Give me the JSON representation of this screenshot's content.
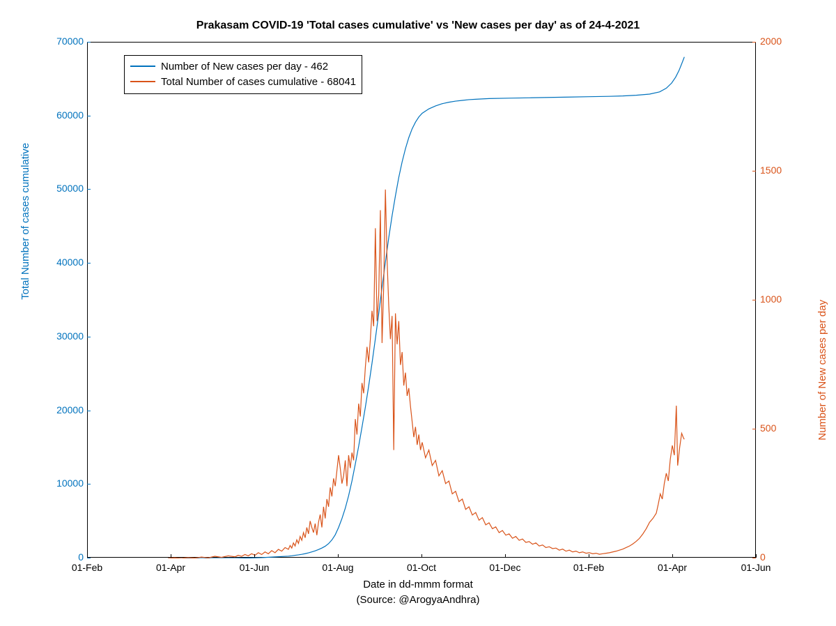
{
  "chart": {
    "type": "dual-axis-line",
    "title": "Prakasam COVID-19 'Total cases cumulative' vs 'New cases per day' as of 24-4-2021",
    "background_color": "#ffffff",
    "plot_border_color": "#000000",
    "title_fontsize": 16,
    "label_fontsize": 15,
    "tick_fontsize": 14,
    "x_label_line1": "Date in dd-mmm format",
    "x_label_line2": "(Source: @ArogyaAndhra)",
    "x_ticks": [
      "01-Feb",
      "01-Apr",
      "01-Jun",
      "01-Aug",
      "01-Oct",
      "01-Dec",
      "01-Feb",
      "01-Apr",
      "01-Jun"
    ],
    "y_left": {
      "label": "Total Number of cases cumulative",
      "color": "#0072bd",
      "min": 0,
      "max": 70000,
      "ticks": [
        0,
        10000,
        20000,
        30000,
        40000,
        50000,
        60000,
        70000
      ]
    },
    "y_right": {
      "label": "Number of New cases per day",
      "color": "#d95319",
      "min": 0,
      "max": 2000,
      "ticks": [
        0,
        500,
        1000,
        1500,
        2000
      ]
    },
    "legend": {
      "items": [
        {
          "color": "#0072bd",
          "label": "Number of New cases per day - 462"
        },
        {
          "color": "#d95319",
          "label": "Total Number of cases cumulative - 68041"
        }
      ]
    },
    "line_width": 1.2,
    "series_cumulative": {
      "color": "#0072bd",
      "data": [
        [
          0.12,
          0
        ],
        [
          0.14,
          0
        ],
        [
          0.16,
          0
        ],
        [
          0.18,
          0
        ],
        [
          0.2,
          0
        ],
        [
          0.22,
          0
        ],
        [
          0.24,
          50
        ],
        [
          0.26,
          100
        ],
        [
          0.28,
          200
        ],
        [
          0.3,
          300
        ],
        [
          0.305,
          350
        ],
        [
          0.31,
          420
        ],
        [
          0.315,
          480
        ],
        [
          0.32,
          550
        ],
        [
          0.325,
          640
        ],
        [
          0.33,
          750
        ],
        [
          0.335,
          880
        ],
        [
          0.34,
          1020
        ],
        [
          0.345,
          1200
        ],
        [
          0.35,
          1400
        ],
        [
          0.355,
          1650
        ],
        [
          0.36,
          2000
        ],
        [
          0.365,
          2500
        ],
        [
          0.37,
          3200
        ],
        [
          0.375,
          4200
        ],
        [
          0.38,
          5400
        ],
        [
          0.385,
          6800
        ],
        [
          0.39,
          8500
        ],
        [
          0.395,
          10500
        ],
        [
          0.4,
          12800
        ],
        [
          0.405,
          15200
        ],
        [
          0.41,
          17800
        ],
        [
          0.415,
          20500
        ],
        [
          0.42,
          23400
        ],
        [
          0.425,
          26500
        ],
        [
          0.43,
          29800
        ],
        [
          0.435,
          33200
        ],
        [
          0.44,
          36800
        ],
        [
          0.445,
          40200
        ],
        [
          0.45,
          43500
        ],
        [
          0.455,
          46500
        ],
        [
          0.46,
          49200
        ],
        [
          0.465,
          51700
        ],
        [
          0.47,
          53800
        ],
        [
          0.475,
          55600
        ],
        [
          0.48,
          57100
        ],
        [
          0.485,
          58300
        ],
        [
          0.49,
          59200
        ],
        [
          0.495,
          59900
        ],
        [
          0.5,
          60400
        ],
        [
          0.51,
          61000
        ],
        [
          0.52,
          61400
        ],
        [
          0.53,
          61700
        ],
        [
          0.54,
          61900
        ],
        [
          0.55,
          62050
        ],
        [
          0.56,
          62150
        ],
        [
          0.57,
          62250
        ],
        [
          0.58,
          62300
        ],
        [
          0.6,
          62400
        ],
        [
          0.63,
          62450
        ],
        [
          0.66,
          62500
        ],
        [
          0.69,
          62550
        ],
        [
          0.72,
          62600
        ],
        [
          0.75,
          62650
        ],
        [
          0.78,
          62700
        ],
        [
          0.8,
          62750
        ],
        [
          0.82,
          62850
        ],
        [
          0.84,
          63000
        ],
        [
          0.855,
          63300
        ],
        [
          0.865,
          63800
        ],
        [
          0.873,
          64500
        ],
        [
          0.879,
          65300
        ],
        [
          0.884,
          66200
        ],
        [
          0.888,
          67100
        ],
        [
          0.892,
          68041
        ]
      ]
    },
    "series_daily": {
      "color": "#d95319",
      "data": [
        [
          0.12,
          0
        ],
        [
          0.13,
          2
        ],
        [
          0.14,
          0
        ],
        [
          0.15,
          3
        ],
        [
          0.16,
          1
        ],
        [
          0.17,
          5
        ],
        [
          0.18,
          2
        ],
        [
          0.19,
          8
        ],
        [
          0.2,
          4
        ],
        [
          0.21,
          10
        ],
        [
          0.22,
          6
        ],
        [
          0.225,
          12
        ],
        [
          0.23,
          8
        ],
        [
          0.235,
          15
        ],
        [
          0.24,
          10
        ],
        [
          0.245,
          18
        ],
        [
          0.25,
          12
        ],
        [
          0.255,
          22
        ],
        [
          0.26,
          15
        ],
        [
          0.265,
          25
        ],
        [
          0.27,
          18
        ],
        [
          0.275,
          30
        ],
        [
          0.28,
          22
        ],
        [
          0.285,
          35
        ],
        [
          0.29,
          28
        ],
        [
          0.295,
          42
        ],
        [
          0.3,
          35
        ],
        [
          0.3025,
          50
        ],
        [
          0.305,
          40
        ],
        [
          0.3075,
          60
        ],
        [
          0.31,
          48
        ],
        [
          0.3125,
          72
        ],
        [
          0.315,
          58
        ],
        [
          0.3175,
          85
        ],
        [
          0.32,
          70
        ],
        [
          0.3225,
          100
        ],
        [
          0.325,
          80
        ],
        [
          0.3275,
          120
        ],
        [
          0.33,
          95
        ],
        [
          0.3325,
          145
        ],
        [
          0.335,
          120
        ],
        [
          0.3375,
          100
        ],
        [
          0.34,
          135
        ],
        [
          0.3425,
          90
        ],
        [
          0.345,
          140
        ],
        [
          0.3475,
          170
        ],
        [
          0.35,
          120
        ],
        [
          0.3525,
          200
        ],
        [
          0.355,
          155
        ],
        [
          0.3575,
          230
        ],
        [
          0.36,
          200
        ],
        [
          0.3625,
          275
        ],
        [
          0.365,
          240
        ],
        [
          0.3675,
          310
        ],
        [
          0.37,
          280
        ],
        [
          0.3725,
          340
        ],
        [
          0.375,
          400
        ],
        [
          0.3775,
          350
        ],
        [
          0.38,
          290
        ],
        [
          0.3825,
          320
        ],
        [
          0.385,
          380
        ],
        [
          0.3875,
          280
        ],
        [
          0.39,
          400
        ],
        [
          0.3925,
          350
        ],
        [
          0.395,
          410
        ],
        [
          0.3975,
          380
        ],
        [
          0.4,
          540
        ],
        [
          0.4025,
          480
        ],
        [
          0.405,
          600
        ],
        [
          0.4075,
          550
        ],
        [
          0.41,
          680
        ],
        [
          0.4125,
          640
        ],
        [
          0.415,
          740
        ],
        [
          0.4175,
          820
        ],
        [
          0.42,
          760
        ],
        [
          0.4225,
          850
        ],
        [
          0.425,
          960
        ],
        [
          0.4275,
          900
        ],
        [
          0.43,
          1280
        ],
        [
          0.4325,
          920
        ],
        [
          0.435,
          1020
        ],
        [
          0.4375,
          1350
        ],
        [
          0.44,
          835
        ],
        [
          0.4425,
          1060
        ],
        [
          0.445,
          1430
        ],
        [
          0.4475,
          1160
        ],
        [
          0.45,
          980
        ],
        [
          0.4525,
          850
        ],
        [
          0.455,
          940
        ],
        [
          0.4575,
          420
        ],
        [
          0.46,
          950
        ],
        [
          0.4625,
          830
        ],
        [
          0.465,
          920
        ],
        [
          0.4675,
          750
        ],
        [
          0.47,
          800
        ],
        [
          0.4725,
          670
        ],
        [
          0.475,
          720
        ],
        [
          0.4775,
          630
        ],
        [
          0.48,
          660
        ],
        [
          0.4825,
          590
        ],
        [
          0.485,
          530
        ],
        [
          0.4875,
          470
        ],
        [
          0.49,
          510
        ],
        [
          0.4925,
          440
        ],
        [
          0.495,
          480
        ],
        [
          0.4975,
          420
        ],
        [
          0.5,
          450
        ],
        [
          0.505,
          390
        ],
        [
          0.51,
          420
        ],
        [
          0.515,
          360
        ],
        [
          0.52,
          380
        ],
        [
          0.525,
          320
        ],
        [
          0.53,
          340
        ],
        [
          0.535,
          290
        ],
        [
          0.54,
          300
        ],
        [
          0.545,
          250
        ],
        [
          0.55,
          260
        ],
        [
          0.555,
          220
        ],
        [
          0.56,
          230
        ],
        [
          0.565,
          190
        ],
        [
          0.57,
          200
        ],
        [
          0.575,
          168
        ],
        [
          0.58,
          178
        ],
        [
          0.585,
          148
        ],
        [
          0.59,
          158
        ],
        [
          0.595,
          130
        ],
        [
          0.6,
          138
        ],
        [
          0.605,
          115
        ],
        [
          0.61,
          122
        ],
        [
          0.615,
          100
        ],
        [
          0.62,
          108
        ],
        [
          0.625,
          90
        ],
        [
          0.63,
          95
        ],
        [
          0.635,
          78
        ],
        [
          0.64,
          85
        ],
        [
          0.645,
          70
        ],
        [
          0.65,
          75
        ],
        [
          0.655,
          62
        ],
        [
          0.66,
          65
        ],
        [
          0.665,
          55
        ],
        [
          0.67,
          60
        ],
        [
          0.675,
          48
        ],
        [
          0.68,
          52
        ],
        [
          0.685,
          42
        ],
        [
          0.69,
          45
        ],
        [
          0.695,
          38
        ],
        [
          0.7,
          40
        ],
        [
          0.705,
          32
        ],
        [
          0.71,
          36
        ],
        [
          0.715,
          28
        ],
        [
          0.72,
          32
        ],
        [
          0.725,
          25
        ],
        [
          0.73,
          28
        ],
        [
          0.735,
          22
        ],
        [
          0.74,
          25
        ],
        [
          0.745,
          20
        ],
        [
          0.75,
          22
        ],
        [
          0.755,
          18
        ],
        [
          0.76,
          20
        ],
        [
          0.765,
          16
        ],
        [
          0.77,
          18
        ],
        [
          0.775,
          20
        ],
        [
          0.78,
          22
        ],
        [
          0.785,
          25
        ],
        [
          0.79,
          28
        ],
        [
          0.795,
          32
        ],
        [
          0.8,
          36
        ],
        [
          0.805,
          42
        ],
        [
          0.81,
          48
        ],
        [
          0.815,
          56
        ],
        [
          0.82,
          66
        ],
        [
          0.825,
          78
        ],
        [
          0.83,
          95
        ],
        [
          0.835,
          115
        ],
        [
          0.84,
          140
        ],
        [
          0.845,
          155
        ],
        [
          0.85,
          175
        ],
        [
          0.853,
          210
        ],
        [
          0.856,
          250
        ],
        [
          0.859,
          230
        ],
        [
          0.862,
          290
        ],
        [
          0.865,
          330
        ],
        [
          0.868,
          300
        ],
        [
          0.871,
          385
        ],
        [
          0.874,
          438
        ],
        [
          0.877,
          400
        ],
        [
          0.88,
          592
        ],
        [
          0.882,
          360
        ],
        [
          0.885,
          430
        ],
        [
          0.888,
          485
        ],
        [
          0.891,
          465
        ],
        [
          0.892,
          462
        ]
      ]
    }
  }
}
